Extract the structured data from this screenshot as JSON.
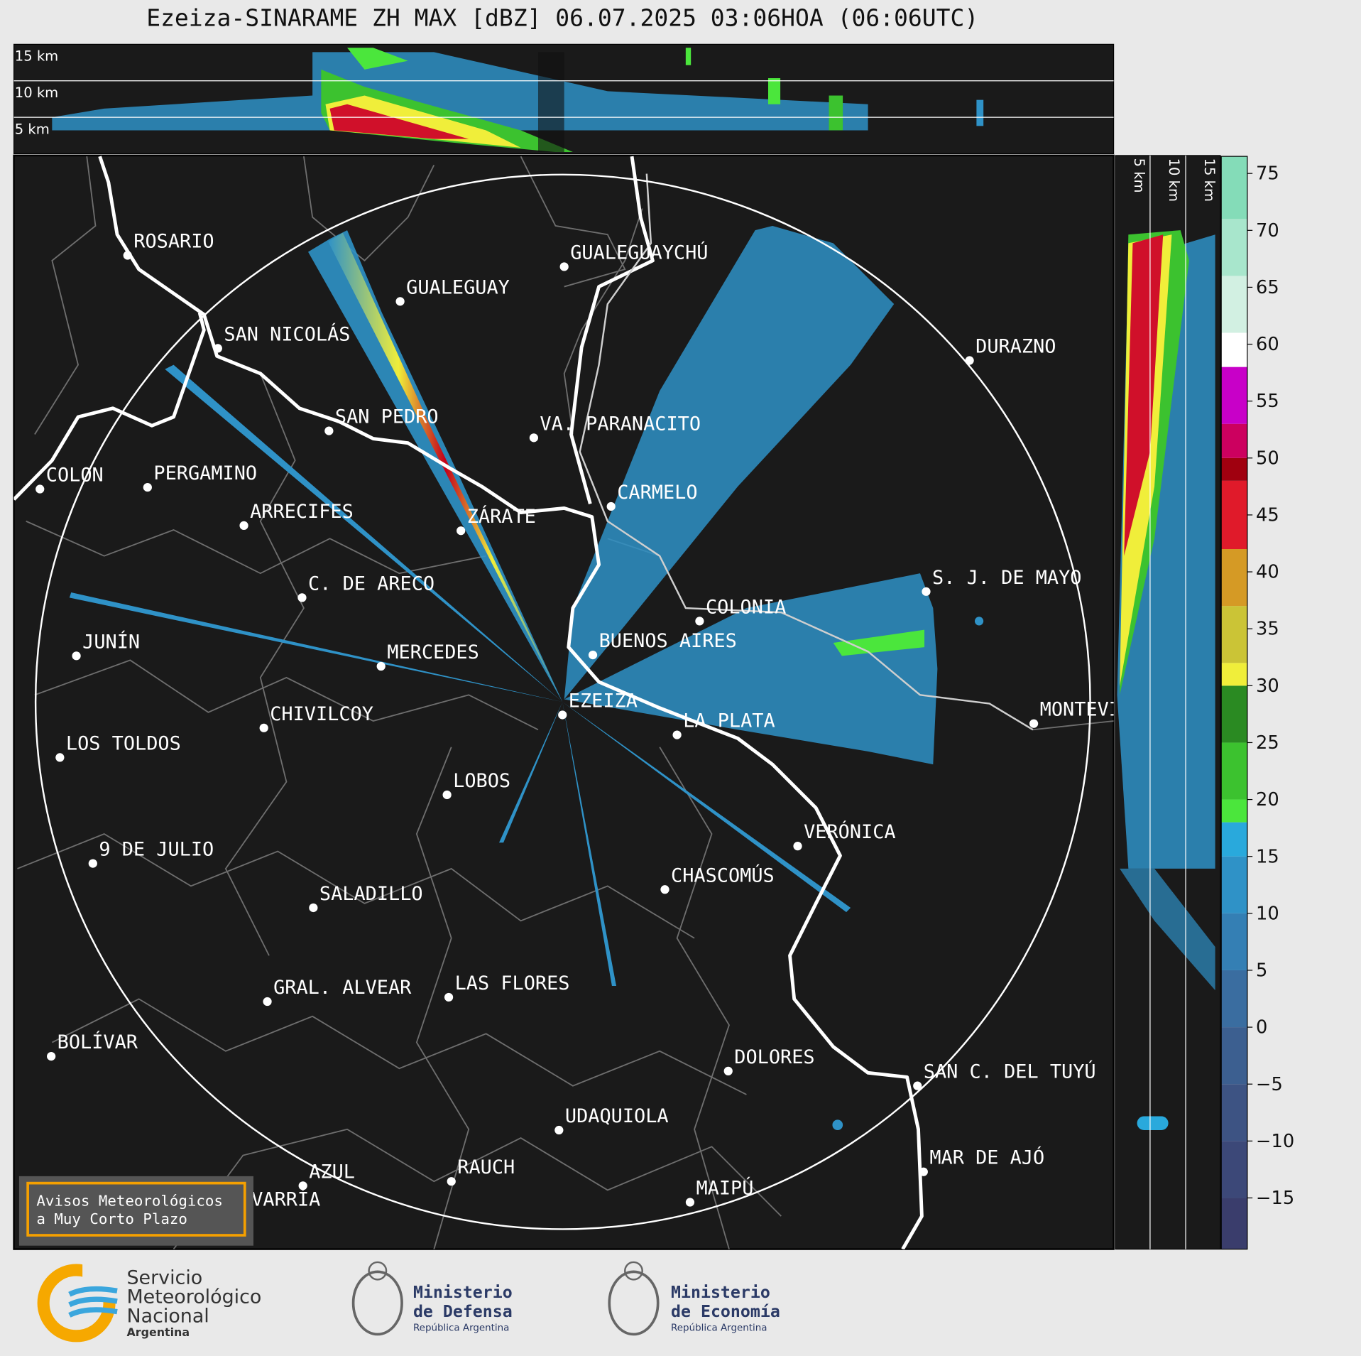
{
  "header": {
    "title": "Ezeiza-SINARAME ZH MAX [dBZ] 06.07.2025 03:06HOA (06:06UTC)"
  },
  "top_panel": {
    "height_labels": [
      "15 km",
      "10 km",
      "5 km"
    ]
  },
  "side_panel": {
    "height_labels": [
      "5 km",
      "10 km",
      "15 km"
    ]
  },
  "cities": [
    "ROSARIO",
    "GUALEGUAYCHÚ",
    "GUALEGUAY",
    "SAN NICOLÁS",
    "DURAZNO",
    "SAN PEDRO",
    "VA. PARANACITO",
    "COLON",
    "PERGAMINO",
    "CARMELO",
    "ARRECIFES",
    "ZÁRATE",
    "S. J. DE MAYO",
    "C. DE ARECO",
    "COLONIA",
    "JUNÍN",
    "BUENOS AIRES",
    "MERCEDES",
    "EZEIZA",
    "MONTEVIDEO",
    "CHIVILCOY",
    "LA PLATA",
    "LOS TOLDOS",
    "LOBOS",
    "VERÓNICA",
    "9 DE JULIO",
    "CHASCOMÚS",
    "SALADILLO",
    "LAS FLORES",
    "GRAL. ALVEAR",
    "BOLÍVAR",
    "DOLORES",
    "SAN C. DEL TUYÚ",
    "UDAQUIOLA",
    "MAR DE AJÓ",
    "RAUCH",
    "AZUL",
    "OLAVARRÍA",
    "MAIPÚ"
  ],
  "colorbar": {
    "lim": [
      -19.5,
      76.5
    ],
    "bins": [
      -19.5,
      -15,
      -10,
      -5,
      0,
      5,
      10,
      15,
      18,
      20,
      25,
      30,
      32,
      37,
      42,
      48,
      50,
      53,
      58,
      61,
      66,
      71,
      76.5
    ],
    "colors": [
      "#3a3d6c",
      "#3c4878",
      "#3d5383",
      "#3c5f90",
      "#3a6da0",
      "#347fb4",
      "#2f92c7",
      "#29a9dc",
      "#4be63c",
      "#3cc22f",
      "#2a8a22",
      "#f0ee3a",
      "#cbc436",
      "#d59a25",
      "#e01a2a",
      "#a0000f",
      "#cc005f",
      "#c800c8",
      "#ffffff",
      "#d2f0e2",
      "#a8e6cc",
      "#84dcb8"
    ],
    "ticks": [
      75,
      70,
      65,
      60,
      55,
      50,
      45,
      40,
      35,
      30,
      25,
      20,
      15,
      10,
      5,
      0,
      {
        "value": -5,
        "label": "−5"
      },
      {
        "value": -10,
        "label": "−10"
      },
      {
        "value": -15,
        "label": "−15"
      }
    ]
  },
  "warning_box": {
    "lines": [
      "Avisos Meteorológicos",
      "a Muy Corto Plazo"
    ]
  },
  "logos": [
    {
      "lines": [
        "Servicio",
        "Meteorológico",
        "Nacional",
        "Argentina"
      ]
    },
    {
      "lines": [
        "Ministerio",
        "de Defensa",
        "República Argentina"
      ]
    },
    {
      "lines": [
        "Ministerio",
        "de Economía",
        "República Argentina"
      ]
    }
  ]
}
